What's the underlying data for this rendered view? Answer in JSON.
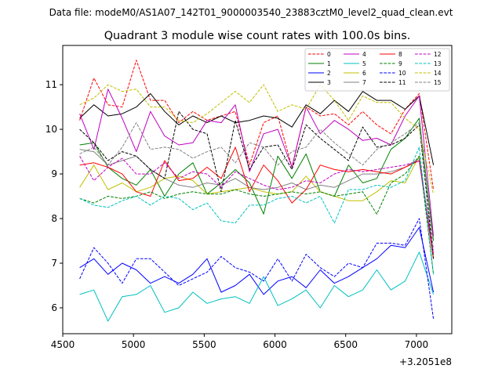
{
  "figure": {
    "suptitle": "Data file: modeM0/AS1A07_142T01_9000003540_23883cztM0_level2_quad_clean.evt",
    "title": "Quadrant 3 module wise count rates with 100.0s bins.",
    "offset_text": "+3.2051e8"
  },
  "chart_data": {
    "type": "line",
    "title": "Quadrant 3 module wise count rates with 100.0s bins.",
    "xlabel": "",
    "ylabel": "",
    "x_offset": 320510000,
    "xlim": [
      4500,
      7250
    ],
    "ylim": [
      5.42,
      11.88
    ],
    "xticks": [
      4500,
      5000,
      5500,
      6000,
      6500,
      7000
    ],
    "xtick_labels": [
      "4500",
      "5000",
      "5500",
      "6000",
      "6500",
      "7000"
    ],
    "yticks": [
      6,
      7,
      8,
      9,
      10,
      11
    ],
    "ytick_labels": [
      "6",
      "7",
      "8",
      "9",
      "10",
      "11"
    ],
    "grid": false,
    "legend": "top-right, 4 columns",
    "x": [
      4620,
      4720,
      4820,
      4920,
      5020,
      5120,
      5220,
      5320,
      5420,
      5520,
      5620,
      5720,
      5820,
      5920,
      6020,
      6120,
      6220,
      6320,
      6420,
      6520,
      6620,
      6720,
      6820,
      6920,
      7020,
      7120
    ],
    "series": [
      {
        "name": "0",
        "color": "#ff0000",
        "dash": "dashed",
        "values": [
          10.2,
          11.15,
          10.55,
          10.5,
          11.55,
          10.65,
          10.65,
          10.15,
          10.4,
          10.2,
          10.3,
          10.4,
          9.2,
          10.15,
          10.3,
          9.15,
          10.5,
          10.3,
          10.35,
          10.1,
          10.4,
          10.1,
          9.9,
          10.45,
          10.8,
          8.65
        ]
      },
      {
        "name": "1",
        "color": "#008000",
        "dash": "solid",
        "values": [
          9.65,
          9.7,
          9.15,
          8.9,
          8.75,
          9.1,
          8.5,
          9.0,
          9.25,
          8.55,
          8.8,
          9.1,
          8.8,
          8.1,
          9.4,
          8.9,
          9.45,
          8.6,
          8.5,
          9.2,
          8.8,
          8.9,
          9.55,
          9.8,
          10.25,
          7.5
        ]
      },
      {
        "name": "2",
        "color": "#0000ff",
        "dash": "solid",
        "values": [
          6.9,
          7.1,
          6.75,
          7.0,
          6.85,
          6.55,
          6.7,
          6.55,
          6.75,
          7.1,
          6.35,
          6.5,
          6.75,
          6.3,
          6.6,
          6.7,
          6.45,
          6.85,
          6.55,
          6.7,
          6.9,
          7.1,
          7.4,
          7.35,
          7.8,
          6.35
        ]
      },
      {
        "name": "3",
        "color": "#000000",
        "dash": "solid",
        "values": [
          10.25,
          10.55,
          10.3,
          10.35,
          10.5,
          10.8,
          10.4,
          10.1,
          10.3,
          10.15,
          10.3,
          10.15,
          10.2,
          10.3,
          10.25,
          10.05,
          10.55,
          10.35,
          10.65,
          10.4,
          10.85,
          10.65,
          10.65,
          10.45,
          10.75,
          9.2
        ]
      },
      {
        "name": "4",
        "color": "#c000c0",
        "dash": "solid",
        "values": [
          10.35,
          9.55,
          10.9,
          10.25,
          9.5,
          10.4,
          9.85,
          9.65,
          9.7,
          10.2,
          10.15,
          10.55,
          9.05,
          9.9,
          10.0,
          9.15,
          10.5,
          9.9,
          10.2,
          10.0,
          9.75,
          9.8,
          9.65,
          10.3,
          10.75,
          7.6
        ]
      },
      {
        "name": "5",
        "color": "#00c0c0",
        "dash": "solid",
        "values": [
          6.3,
          6.4,
          5.7,
          6.25,
          6.3,
          6.5,
          5.9,
          6.0,
          6.35,
          6.1,
          6.2,
          6.25,
          6.1,
          6.7,
          6.05,
          6.2,
          6.4,
          6.0,
          6.5,
          6.25,
          6.4,
          6.85,
          6.4,
          6.6,
          7.25,
          6.3
        ]
      },
      {
        "name": "6",
        "color": "#c0c000",
        "dash": "solid",
        "values": [
          8.7,
          9.2,
          8.65,
          8.8,
          8.6,
          8.7,
          8.9,
          8.95,
          8.85,
          8.55,
          8.6,
          8.65,
          8.7,
          8.6,
          8.55,
          8.6,
          8.95,
          8.6,
          8.5,
          8.4,
          8.4,
          8.6,
          8.85,
          8.8,
          9.4,
          7.1
        ]
      },
      {
        "name": "7",
        "color": "#808080",
        "dash": "solid",
        "values": [
          9.55,
          9.5,
          9.2,
          9.3,
          9.4,
          9.1,
          8.9,
          8.75,
          8.7,
          8.8,
          8.75,
          8.9,
          8.7,
          8.65,
          8.7,
          8.8,
          8.65,
          8.75,
          8.7,
          8.85,
          9.0,
          9.0,
          9.05,
          9.15,
          9.35,
          7.2
        ]
      },
      {
        "name": "8",
        "color": "#ff0000",
        "dash": "solid",
        "values": [
          9.2,
          9.25,
          9.15,
          9.0,
          8.6,
          8.5,
          9.3,
          8.85,
          8.9,
          9.15,
          8.9,
          9.6,
          8.6,
          9.2,
          8.85,
          8.35,
          8.65,
          9.2,
          9.1,
          9.05,
          9.1,
          9.05,
          9.0,
          9.15,
          9.3,
          7.1
        ]
      },
      {
        "name": "9",
        "color": "#008000",
        "dash": "dashed",
        "values": [
          8.45,
          8.35,
          8.5,
          8.45,
          8.5,
          8.6,
          8.45,
          8.55,
          8.6,
          8.55,
          8.55,
          8.65,
          8.55,
          8.5,
          8.55,
          8.6,
          8.55,
          8.6,
          8.5,
          8.55,
          8.6,
          8.1,
          8.8,
          9.0,
          9.4,
          6.75
        ]
      },
      {
        "name": "10",
        "color": "#0000ff",
        "dash": "dashed",
        "values": [
          6.65,
          7.35,
          7.0,
          6.55,
          7.1,
          7.1,
          6.8,
          6.5,
          6.65,
          6.8,
          7.15,
          6.9,
          6.8,
          6.6,
          7.1,
          6.6,
          7.2,
          6.9,
          6.7,
          7.0,
          6.9,
          7.45,
          7.45,
          7.4,
          8.0,
          5.75
        ]
      },
      {
        "name": "11",
        "color": "#000000",
        "dash": "dashed",
        "values": [
          10.0,
          9.7,
          9.3,
          9.5,
          9.4,
          9.1,
          8.9,
          10.4,
          10.0,
          9.9,
          8.6,
          10.2,
          9.1,
          9.6,
          9.65,
          9.1,
          10.1,
          9.8,
          9.55,
          9.3,
          10.05,
          9.6,
          9.65,
          9.8,
          10.1,
          7.1
        ]
      },
      {
        "name": "12",
        "color": "#c000c0",
        "dash": "dashed",
        "values": [
          9.4,
          8.85,
          9.15,
          9.35,
          9.0,
          9.0,
          9.25,
          8.9,
          9.05,
          9.0,
          8.7,
          9.05,
          8.9,
          8.75,
          8.65,
          8.7,
          8.85,
          8.8,
          9.0,
          9.1,
          9.05,
          9.1,
          9.15,
          9.2,
          9.3,
          7.2
        ]
      },
      {
        "name": "13",
        "color": "#00c0c0",
        "dash": "dashed",
        "values": [
          8.45,
          8.3,
          8.25,
          8.4,
          8.5,
          8.3,
          8.5,
          8.45,
          8.2,
          8.35,
          7.95,
          7.9,
          8.3,
          8.3,
          8.45,
          8.5,
          8.35,
          8.5,
          7.9,
          8.65,
          8.65,
          8.75,
          8.7,
          8.85,
          9.6,
          6.75
        ]
      },
      {
        "name": "14",
        "color": "#c0c000",
        "dash": "dashed",
        "values": [
          10.55,
          10.7,
          11.0,
          10.85,
          10.9,
          10.5,
          10.5,
          10.2,
          10.15,
          10.35,
          10.6,
          10.85,
          10.6,
          11.0,
          10.4,
          10.55,
          10.45,
          11.0,
          10.65,
          10.2,
          10.75,
          10.6,
          10.6,
          10.25,
          10.0,
          8.55
        ]
      },
      {
        "name": "15",
        "color": "#808080",
        "dash": "dashed",
        "values": [
          9.45,
          9.6,
          9.2,
          9.6,
          10.15,
          9.55,
          9.6,
          9.55,
          9.35,
          9.5,
          9.6,
          9.25,
          9.7,
          9.6,
          9.2,
          9.5,
          9.6,
          10.0,
          9.7,
          9.45,
          9.2,
          9.55,
          9.7,
          9.9,
          10.15,
          7.3
        ]
      }
    ]
  }
}
